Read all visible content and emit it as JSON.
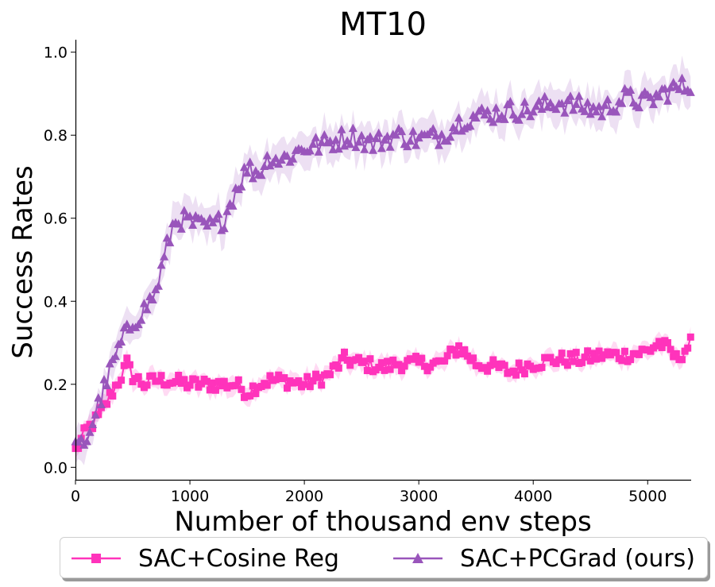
{
  "chart_data": {
    "type": "line",
    "title": "MT10",
    "xlabel": "Number of thousand env steps",
    "ylabel": "Success Rates",
    "xlim": [
      0,
      5380
    ],
    "ylim": [
      -0.03,
      1.03
    ],
    "xticks": [
      0,
      1000,
      2000,
      3000,
      4000,
      5000
    ],
    "yticks": [
      0.0,
      0.2,
      0.4,
      0.6,
      0.8,
      1.0
    ],
    "xtick_labels": [
      "0",
      "1000",
      "2000",
      "3000",
      "4000",
      "5000"
    ],
    "ytick_labels": [
      "0.0",
      "0.2",
      "0.4",
      "0.6",
      "0.8",
      "1.0"
    ],
    "grid": false,
    "legend_placement": "bottom-center, below axes",
    "series": [
      {
        "name": "SAC+Cosine Reg",
        "color": "#ff33bb",
        "marker": "square",
        "x": [
          0,
          100,
          200,
          300,
          400,
          450,
          500,
          600,
          700,
          800,
          1000,
          1200,
          1400,
          1500,
          1600,
          1700,
          1800,
          2000,
          2200,
          2350,
          2500,
          2700,
          2800,
          3000,
          3200,
          3350,
          3500,
          3700,
          3800,
          4000,
          4200,
          4400,
          4600,
          4800,
          5000,
          5100,
          5200,
          5250,
          5380
        ],
        "y": [
          0.04,
          0.09,
          0.12,
          0.17,
          0.22,
          0.25,
          0.22,
          0.2,
          0.21,
          0.21,
          0.2,
          0.2,
          0.2,
          0.18,
          0.2,
          0.21,
          0.21,
          0.2,
          0.22,
          0.26,
          0.25,
          0.24,
          0.25,
          0.25,
          0.25,
          0.29,
          0.25,
          0.24,
          0.23,
          0.25,
          0.26,
          0.26,
          0.27,
          0.27,
          0.28,
          0.3,
          0.28,
          0.26,
          0.3
        ],
        "band_width": 0.02
      },
      {
        "name": "SAC+PCGrad (ours)",
        "color": "#9955bb",
        "marker": "triangle",
        "x": [
          0,
          100,
          200,
          300,
          400,
          500,
          600,
          700,
          800,
          850,
          900,
          1000,
          1100,
          1200,
          1300,
          1400,
          1500,
          1600,
          1700,
          1800,
          2000,
          2200,
          2400,
          2600,
          2800,
          3000,
          3200,
          3400,
          3600,
          3800,
          4000,
          4200,
          4400,
          4600,
          4800,
          5000,
          5200,
          5380
        ],
        "y": [
          0.04,
          0.07,
          0.15,
          0.23,
          0.3,
          0.35,
          0.38,
          0.42,
          0.53,
          0.58,
          0.6,
          0.59,
          0.58,
          0.58,
          0.6,
          0.67,
          0.72,
          0.71,
          0.75,
          0.74,
          0.77,
          0.78,
          0.8,
          0.78,
          0.8,
          0.79,
          0.8,
          0.84,
          0.85,
          0.86,
          0.86,
          0.88,
          0.87,
          0.86,
          0.89,
          0.88,
          0.91,
          0.92
        ],
        "band_width": 0.04
      }
    ]
  }
}
